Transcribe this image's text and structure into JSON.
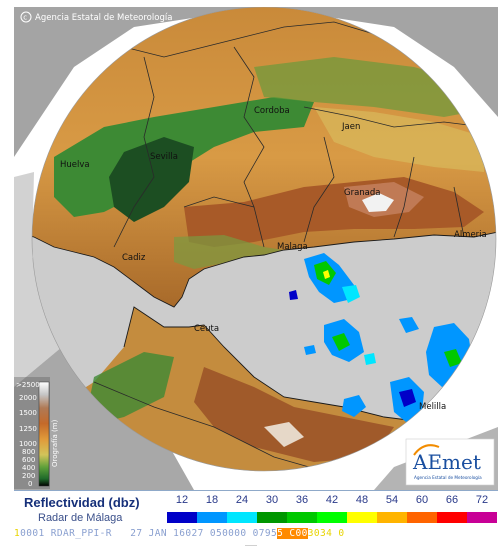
{
  "credit": "Agencia Estatal de Meteorología",
  "cities": [
    "Huelva",
    "Sevilla",
    "Cordoba",
    "Jaen",
    "Granada",
    "Malaga",
    "Cadiz",
    "Ceuta",
    "Melilla",
    "Almeria"
  ],
  "orography": {
    "title": "Orografía (m)",
    "ticks": [
      ">2500",
      "2000",
      "1500",
      "1250",
      "1000",
      "800",
      "600",
      "400",
      "200",
      "0"
    ]
  },
  "logo": {
    "text": "AEmet",
    "caption": "Agencia Estatal de Meteorología"
  },
  "legend": {
    "title": "Reflectividad (dbz)",
    "radar": "Radar de Málaga",
    "scale": [
      {
        "value": "12",
        "color": "#0000c8"
      },
      {
        "value": "18",
        "color": "#0096ff"
      },
      {
        "value": "24",
        "color": "#00e6ff"
      },
      {
        "value": "30",
        "color": "#009600"
      },
      {
        "value": "36",
        "color": "#00c800"
      },
      {
        "value": "42",
        "color": "#00ff00"
      },
      {
        "value": "48",
        "color": "#ffff00"
      },
      {
        "value": "54",
        "color": "#ffb400"
      },
      {
        "value": "60",
        "color": "#ff6400"
      },
      {
        "value": "66",
        "color": "#ff0000"
      },
      {
        "value": "72",
        "color": "#c80096"
      }
    ]
  },
  "status": {
    "prefix": "1",
    "line": "0001 RDAR_PPI-R   27 JAN 16027 050000 0795",
    "highlight": "5 C00",
    "suffix": "3034 0"
  }
}
